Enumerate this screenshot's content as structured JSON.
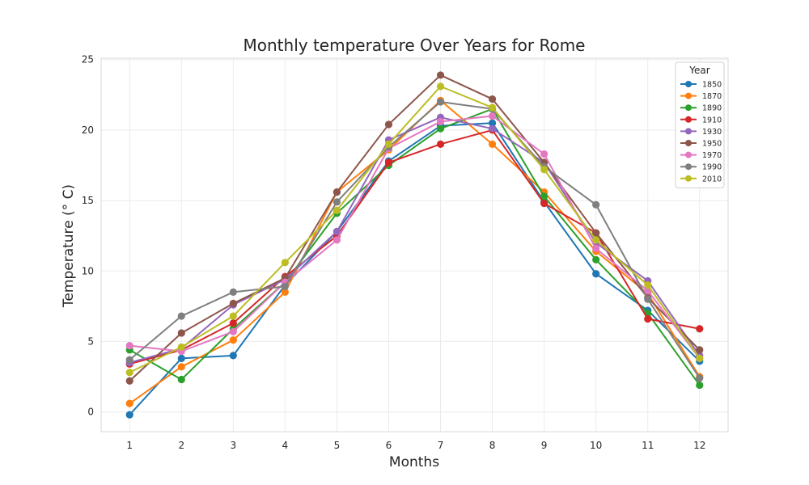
{
  "chart_data": {
    "type": "line",
    "title": "Monthly temperature Over Years for Rome",
    "xlabel": "Months",
    "ylabel": "Temperature (° C)",
    "x": [
      1,
      2,
      3,
      4,
      5,
      6,
      7,
      8,
      9,
      10,
      11,
      12
    ],
    "xlim": [
      0.45,
      12.55
    ],
    "ylim": [
      -1.4,
      25.1
    ],
    "yticks": [
      0,
      5,
      10,
      15,
      20,
      25
    ],
    "grid": true,
    "legend": {
      "title": "Year",
      "position": "top-right"
    },
    "series": [
      {
        "name": "1850",
        "color": "#1f77b4",
        "values": [
          -0.2,
          3.8,
          4.0,
          9.0,
          12.8,
          17.8,
          20.3,
          20.5,
          14.9,
          9.8,
          7.2,
          3.6
        ]
      },
      {
        "name": "1870",
        "color": "#ff7f0e",
        "values": [
          0.6,
          3.2,
          5.1,
          8.5,
          15.6,
          18.6,
          22.1,
          19.0,
          15.6,
          11.4,
          8.4,
          2.5
        ]
      },
      {
        "name": "1890",
        "color": "#2ca02c",
        "values": [
          4.4,
          2.3,
          5.9,
          9.2,
          14.1,
          17.5,
          20.1,
          21.5,
          15.3,
          10.8,
          7.0,
          1.9
        ]
      },
      {
        "name": "1910",
        "color": "#d62728",
        "values": [
          3.4,
          4.4,
          6.3,
          9.6,
          12.5,
          17.7,
          19.0,
          20.0,
          14.8,
          12.7,
          6.6,
          5.9
        ]
      },
      {
        "name": "1930",
        "color": "#9467bd",
        "values": [
          3.5,
          4.5,
          7.6,
          9.4,
          12.8,
          19.3,
          20.9,
          20.1,
          17.7,
          12.0,
          9.3,
          4.0
        ]
      },
      {
        "name": "1950",
        "color": "#8c564b",
        "values": [
          2.2,
          5.6,
          7.7,
          9.5,
          15.6,
          20.4,
          23.9,
          22.2,
          17.7,
          12.7,
          8.1,
          4.4
        ]
      },
      {
        "name": "1970",
        "color": "#e377c2",
        "values": [
          4.7,
          4.3,
          5.7,
          9.2,
          12.2,
          18.7,
          20.6,
          21.0,
          18.3,
          11.6,
          8.6,
          3.8
        ]
      },
      {
        "name": "1990",
        "color": "#7f7f7f",
        "values": [
          3.7,
          6.8,
          8.5,
          8.9,
          14.9,
          18.8,
          22.0,
          21.5,
          17.4,
          14.7,
          8.0,
          2.4
        ]
      },
      {
        "name": "2010",
        "color": "#bcbd22",
        "values": [
          2.8,
          4.6,
          6.8,
          10.6,
          14.3,
          19.0,
          23.1,
          21.6,
          17.2,
          12.2,
          9.0,
          3.8
        ]
      }
    ]
  }
}
